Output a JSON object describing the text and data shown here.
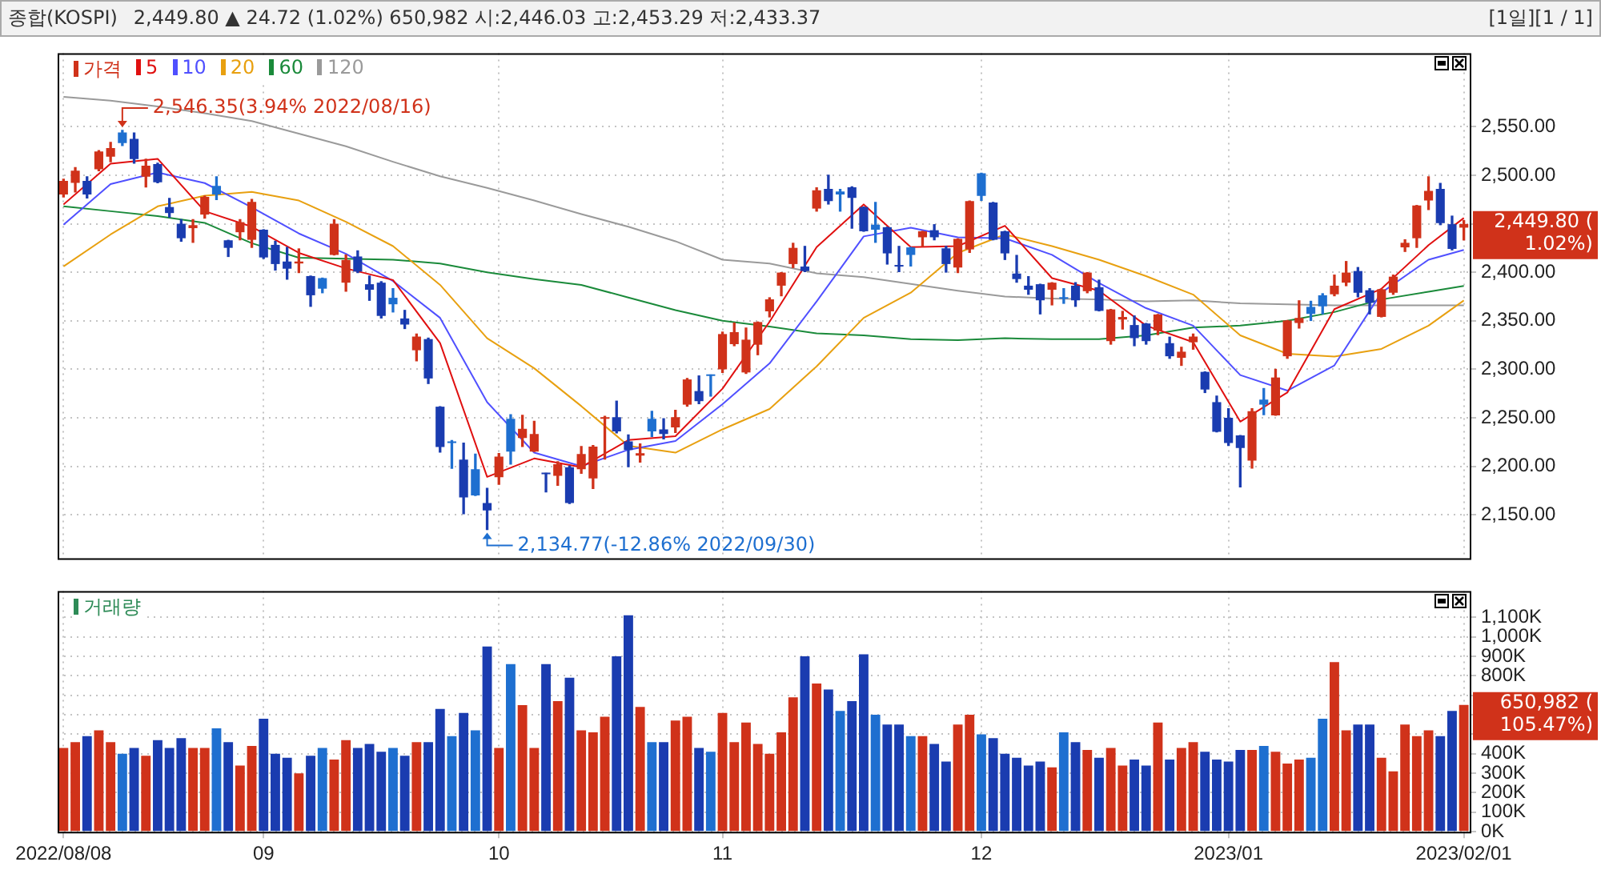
{
  "chart_data": [
    {
      "type": "candlestick",
      "title": "종합(KOSPI)",
      "subtitle": "2,449.80 ▲ 24.72 (1.02%)   650,982   시:2,446.03 고:2,453.29 저:2,433.37",
      "categories": [
        "2022/08/08",
        null,
        null,
        null,
        null,
        null,
        null,
        null,
        null,
        null,
        null,
        null,
        null,
        null,
        null,
        null,
        null,
        "09",
        null,
        null,
        null,
        null,
        null,
        null,
        null,
        null,
        null,
        null,
        null,
        null,
        null,
        null,
        null,
        null,
        null,
        null,
        null,
        "10",
        null,
        null,
        null,
        null,
        null,
        null,
        null,
        null,
        null,
        null,
        null,
        null,
        null,
        null,
        null,
        null,
        null,
        null,
        "11",
        null,
        null,
        null,
        null,
        null,
        null,
        null,
        null,
        null,
        null,
        null,
        null,
        null,
        null,
        null,
        null,
        null,
        null,
        null,
        null,
        null,
        "12",
        null,
        null,
        null,
        null,
        null,
        null,
        null,
        null,
        null,
        null,
        null,
        null,
        null,
        null,
        null,
        null,
        null,
        null,
        null,
        null,
        "2023/01",
        null,
        null,
        null,
        null,
        null,
        null,
        null,
        null,
        null,
        null,
        null,
        null,
        null,
        null,
        null,
        null,
        null,
        null,
        null,
        "2023/02/01"
      ],
      "ylim": [
        2105,
        2626
      ],
      "yticks": [
        {
          "value": 2150,
          "label": "2,150.00"
        },
        {
          "value": 2200,
          "label": "2,200.00"
        },
        {
          "value": 2250,
          "label": "2,250.00"
        },
        {
          "value": 2300,
          "label": "2,300.00"
        },
        {
          "value": 2350,
          "label": "2,350.00"
        },
        {
          "value": 2400,
          "label": "2,400.00"
        },
        {
          "value": 2450,
          "label": null
        },
        {
          "value": 2500,
          "label": "2,500.00"
        },
        {
          "value": 2550,
          "label": "2,550.00"
        }
      ],
      "tick_labels": "y",
      "grid": true,
      "legend": "top left",
      "marker": "none",
      "annotations": [
        {
          "text": "2,546.35(3.94% 2022/08/16)",
          "y": 2546.35
        },
        "2,134.77(-12.86% 2022/09/30)",
        {
          "text": "2,449.80 ( 1.02%)",
          "x": "2023/02/01",
          "y": 2449.8
        },
        "[1일][1 / 1]"
      ],
      "series": [
        {
          "type": "candlestick",
          "name": "가격",
          "color": "#d0321a",
          "colors": [
            "#d0321a",
            "#d0321a",
            "#1a3cb0",
            "#d0321a",
            "#d0321a",
            "#1e6fd0",
            "#1a3cb0",
            "#d0321a",
            "#1a3cb0",
            "#1a3cb0",
            "#1a3cb0",
            "#d0321a",
            "#d0321a",
            "#1e6fd0",
            "#1a3cb0",
            "#d0321a",
            "#d0321a",
            "#1a3cb0",
            "#1a3cb0",
            "#1a3cb0",
            "#d0321a",
            "#1a3cb0",
            "#1e6fd0",
            "#d0321a",
            "#d0321a",
            "#1a3cb0",
            "#1a3cb0",
            "#1a3cb0",
            "#1e6fd0",
            "#1a3cb0",
            "#d0321a",
            "#1a3cb0",
            "#1a3cb0",
            "#1e6fd0",
            "#1a3cb0",
            "#1e6fd0",
            "#1a3cb0",
            "#d0321a",
            "#1e6fd0",
            "#d0321a",
            "#d0321a",
            "#1a3cb0",
            "#d0321a",
            "#1a3cb0",
            "#d0321a",
            "#d0321a",
            "#d0321a",
            "#1a3cb0",
            "#1a3cb0",
            "#d0321a",
            "#1e6fd0",
            "#1a3cb0",
            "#d0321a",
            "#d0321a",
            "#1a3cb0",
            "#1e6fd0",
            "#d0321a",
            "#d0321a",
            "#d0321a",
            "#d0321a",
            "#d0321a",
            "#d0321a",
            "#d0321a",
            "#1a3cb0",
            "#d0321a",
            "#1a3cb0",
            "#1e6fd0",
            "#1a3cb0",
            "#1a3cb0",
            "#1e6fd0",
            "#1a3cb0",
            "#1a3cb0",
            "#1e6fd0",
            "#d0321a",
            "#1a3cb0",
            "#1a3cb0",
            "#d0321a",
            "#d0321a",
            "#1e6fd0",
            "#1a3cb0",
            "#1a3cb0",
            "#1a3cb0",
            "#1a3cb0",
            "#1a3cb0",
            "#d0321a",
            "#1e6fd0",
            "#1a3cb0",
            "#d0321a",
            "#1a3cb0",
            "#d0321a",
            "#d0321a",
            "#1a3cb0",
            "#1a3cb0",
            "#d0321a",
            "#1a3cb0",
            "#d0321a",
            "#d0321a",
            "#1a3cb0",
            "#1a3cb0",
            "#1a3cb0",
            "#1a3cb0",
            "#d0321a",
            "#1e6fd0",
            "#d0321a",
            "#d0321a",
            "#d0321a",
            "#1e6fd0",
            "#1e6fd0",
            "#d0321a",
            "#d0321a",
            "#1a3cb0",
            "#1a3cb0",
            "#d0321a",
            "#d0321a",
            "#d0321a",
            "#d0321a",
            "#d0321a",
            "#1a3cb0",
            "#1a3cb0",
            "#d0321a"
          ],
          "ohlc": [
            [
              2480.3,
              2495.9,
              2477.7,
              2494.3
            ],
            [
              2492.3,
              2507.9,
              2482.9,
              2504.7
            ],
            [
              2494.3,
              2498.5,
              2476.7,
              2480.3
            ],
            [
              2506.3,
              2525.5,
              2504.7,
              2524.5
            ],
            [
              2519.3,
              2533.9,
              2514.1,
              2528.1
            ],
            [
              2544.3,
              2546.35,
              2530.7,
              2533.3
            ],
            [
              2537.5,
              2543.7,
              2512.5,
              2516.7
            ],
            [
              2498.5,
              2516.7,
              2488.1,
              2509.9
            ],
            [
              2511.5,
              2512.5,
              2492.3,
              2492.8
            ],
            [
              2467.3,
              2476.1,
              2456.9,
              2461.1
            ],
            [
              2450.1,
              2454.3,
              2432.0,
              2435.1
            ],
            [
              2445.5,
              2454.3,
              2430.9,
              2448.6
            ],
            [
              2459.5,
              2478.7,
              2455.9,
              2477.7
            ],
            [
              2489.1,
              2498.5,
              2475.1,
              2480.3
            ],
            [
              2433.0,
              2433.0,
              2416.3,
              2425.2
            ],
            [
              2441.3,
              2454.3,
              2433.5,
              2451.7
            ],
            [
              2433.5,
              2475.1,
              2425.7,
              2472.5
            ],
            [
              2443.9,
              2443.9,
              2414.3,
              2415.3
            ],
            [
              2428.3,
              2432.0,
              2402.3,
              2408.5
            ],
            [
              2411.1,
              2425.7,
              2392.9,
              2403.7
            ],
            [
              2409.1,
              2424.1,
              2399.7,
              2411.1
            ],
            [
              2396.1,
              2396.1,
              2364.9,
              2376.3
            ],
            [
              2394.0,
              2394.0,
              2378.9,
              2383.1
            ],
            [
              2417.9,
              2454.3,
              2417.9,
              2450.1
            ],
            [
              2389.3,
              2417.9,
              2380.5,
              2412.7
            ],
            [
              2416.3,
              2422.1,
              2399.7,
              2400.7
            ],
            [
              2387.7,
              2396.1,
              2371.1,
              2382.0
            ],
            [
              2389.3,
              2390.3,
              2352.9,
              2355.0
            ],
            [
              2373.7,
              2383.1,
              2359.1,
              2367.0
            ],
            [
              2352.4,
              2360.7,
              2342.0,
              2346.1
            ],
            [
              2319.6,
              2336.3,
              2308.7,
              2333.7
            ],
            [
              2331.1,
              2332.1,
              2285.3,
              2290.5
            ],
            [
              2261.4,
              2261.4,
              2214.6,
              2219.8
            ],
            [
              2225.5,
              2226.5,
              2197.9,
              2223.9
            ],
            [
              2206.8,
              2223.9,
              2151.1,
              2167.8
            ],
            [
              2196.9,
              2212.5,
              2169.9,
              2169.9
            ],
            [
              2162.1,
              2177.1,
              2134.77,
              2154.3
            ],
            [
              2188.6,
              2213.0,
              2181.3,
              2209.9
            ],
            [
              2248.9,
              2253.1,
              2202.1,
              2215.1
            ],
            [
              2229.1,
              2252.5,
              2220.3,
              2238.5
            ],
            [
              2215.1,
              2246.3,
              2215.1,
              2233.3
            ],
            [
              2192.7,
              2192.7,
              2173.5,
              2191.7
            ],
            [
              2190.1,
              2204.7,
              2180.3,
              2202.1
            ],
            [
              2199.0,
              2200.0,
              2161.5,
              2162.1
            ],
            [
              2196.9,
              2220.3,
              2192.7,
              2212.5
            ],
            [
              2187.5,
              2221.3,
              2177.1,
              2220.3
            ],
            [
              2248.9,
              2251.5,
              2207.3,
              2250.5
            ],
            [
              2250.5,
              2267.1,
              2234.3,
              2235.9
            ],
            [
              2225.5,
              2232.3,
              2199.5,
              2216.7
            ],
            [
              2210.9,
              2222.9,
              2204.2,
              2213.5
            ],
            [
              2248.9,
              2256.7,
              2230.7,
              2235.9
            ],
            [
              2238.0,
              2248.9,
              2228.1,
              2233.3
            ],
            [
              2240.1,
              2257.7,
              2234.9,
              2250.5
            ],
            [
              2263.5,
              2290.5,
              2261.9,
              2289.5
            ],
            [
              2277.5,
              2293.1,
              2264.5,
              2267.1
            ],
            [
              2294.1,
              2294.1,
              2272.3,
              2293.1
            ],
            [
              2299.9,
              2338.3,
              2296.7,
              2336.3
            ],
            [
              2325.9,
              2347.7,
              2324.3,
              2338.3
            ],
            [
              2296.7,
              2342.5,
              2295.7,
              2330.5
            ],
            [
              2325.3,
              2348.7,
              2315.0,
              2348.7
            ],
            [
              2359.7,
              2373.7,
              2354.0,
              2372.1
            ],
            [
              2386.2,
              2399.7,
              2375.8,
              2399.7
            ],
            [
              2408.5,
              2429.9,
              2404.9,
              2425.2
            ],
            [
              2405.9,
              2426.7,
              2400.7,
              2401.3
            ],
            [
              2465.7,
              2487.1,
              2463.1,
              2484.5
            ],
            [
              2486.0,
              2500.1,
              2470.4,
              2473.5
            ],
            [
              2483.4,
              2485.5,
              2463.1,
              2480.3
            ],
            [
              2487.6,
              2488.1,
              2445.5,
              2476.7
            ],
            [
              2467.3,
              2467.3,
              2442.3,
              2442.3
            ],
            [
              2449.1,
              2472.0,
              2430.9,
              2443.9
            ],
            [
              2446.5,
              2446.5,
              2408.5,
              2419.5
            ],
            [
              2407.5,
              2426.7,
              2400.7,
              2405.9
            ],
            [
              2425.7,
              2425.7,
              2406.5,
              2417.9
            ],
            [
              2436.1,
              2442.3,
              2426.7,
              2442.3
            ],
            [
              2443.4,
              2449.1,
              2433.5,
              2436.1
            ],
            [
              2424.7,
              2426.7,
              2400.2,
              2408.5
            ],
            [
              2404.9,
              2434.5,
              2399.7,
              2434.5
            ],
            [
              2423.6,
              2473.5,
              2420.5,
              2473.5
            ],
            [
              2502.1,
              2502.1,
              2474.1,
              2478.7
            ],
            [
              2472.0,
              2472.0,
              2433.5,
              2433.5
            ],
            [
              2442.3,
              2442.3,
              2413.2,
              2419.5
            ],
            [
              2398.7,
              2417.4,
              2389.8,
              2393.0
            ],
            [
              2386.2,
              2395.5,
              2377.3,
              2382.0
            ],
            [
              2387.7,
              2387.7,
              2357.1,
              2371.1
            ],
            [
              2382.0,
              2389.3,
              2366.4,
              2389.3
            ],
            [
              2373.7,
              2383.1,
              2368.0,
              2372.7
            ],
            [
              2386.2,
              2389.3,
              2364.9,
              2371.1
            ],
            [
              2380.5,
              2399.7,
              2378.9,
              2399.7
            ],
            [
              2384.6,
              2391.9,
              2360.2,
              2360.2
            ],
            [
              2329.0,
              2361.7,
              2325.9,
              2361.7
            ],
            [
              2351.3,
              2359.7,
              2341.5,
              2353.9
            ],
            [
              2345.6,
              2355.0,
              2324.3,
              2332.1
            ],
            [
              2347.2,
              2347.2,
              2325.9,
              2329.0
            ],
            [
              2339.9,
              2356.5,
              2335.7,
              2356.5
            ],
            [
              2326.9,
              2333.1,
              2311.3,
              2313.4
            ],
            [
              2311.8,
              2322.7,
              2304.0,
              2318.1
            ],
            [
              2327.9,
              2336.3,
              2320.7,
              2333.7
            ],
            [
              2297.3,
              2297.3,
              2276.0,
              2279.1
            ],
            [
              2266.1,
              2272.3,
              2235.4,
              2235.4
            ],
            [
              2250.0,
              2259.3,
              2221.3,
              2224.0
            ],
            [
              2231.7,
              2231.7,
              2178.7,
              2218.7
            ],
            [
              2205.7,
              2259.3,
              2198.0,
              2256.7
            ],
            [
              2268.7,
              2280.1,
              2253.1,
              2263.5
            ],
            [
              2252.5,
              2299.9,
              2252.5,
              2291.5
            ],
            [
              2313.4,
              2350.3,
              2311.3,
              2350.3
            ],
            [
              2347.7,
              2370.6,
              2342.5,
              2352.9
            ],
            [
              2364.3,
              2370.1,
              2350.3,
              2357.1
            ],
            [
              2376.3,
              2377.9,
              2357.1,
              2364.9
            ],
            [
              2377.3,
              2397.1,
              2375.8,
              2386.2
            ],
            [
              2389.3,
              2411.1,
              2386.2,
              2399.7
            ],
            [
              2401.3,
              2404.9,
              2374.7,
              2378.9
            ],
            [
              2381.5,
              2383.1,
              2357.1,
              2368.5
            ],
            [
              2354.0,
              2382.5,
              2354.0,
              2382.5
            ],
            [
              2378.9,
              2397.1,
              2377.3,
              2395.5
            ],
            [
              2425.7,
              2433.5,
              2421.5,
              2430.4
            ],
            [
              2435.1,
              2468.9,
              2425.7,
              2468.9
            ],
            [
              2474.1,
              2498.5,
              2464.7,
              2484.0
            ],
            [
              2486.0,
              2491.7,
              2449.1,
              2450.7
            ],
            [
              2449.6,
              2457.9,
              2423.1,
              2424.1
            ],
            [
              2446.03,
              2453.29,
              2433.37,
              2449.8
            ]
          ]
        },
        {
          "type": "line",
          "name": "5",
          "color": "#e01010",
          "values": [
            2470,
            null,
            null,
            null,
            2512,
            null,
            null,
            null,
            2517,
            null,
            null,
            null,
            2463,
            null,
            null,
            null,
            2447,
            null,
            null,
            null,
            2420,
            null,
            null,
            null,
            2404,
            null,
            null,
            null,
            2392,
            null,
            null,
            null,
            2327,
            null,
            null,
            null,
            2189,
            null,
            null,
            null,
            2208,
            null,
            null,
            null,
            2199,
            null,
            null,
            null,
            2227,
            null,
            null,
            null,
            2231,
            null,
            null,
            null,
            2280,
            null,
            null,
            null,
            2349,
            null,
            null,
            null,
            2426,
            null,
            null,
            null,
            2470,
            null,
            null,
            null,
            2426,
            null,
            null,
            null,
            2427,
            null,
            null,
            null,
            2448,
            null,
            null,
            null,
            2394,
            null,
            null,
            null,
            2381,
            null,
            null,
            null,
            2345,
            null,
            null,
            null,
            2328,
            null,
            null,
            null,
            2246,
            null,
            null,
            null,
            2276,
            null,
            null,
            null,
            2362,
            null,
            null,
            null,
            2383,
            null,
            null,
            null,
            2428,
            null,
            null,
            2456
          ]
        },
        {
          "type": "line",
          "name": "10",
          "color": "#5050ff",
          "values": [
            2449,
            null,
            null,
            null,
            2491,
            null,
            null,
            null,
            2503,
            null,
            null,
            null,
            2492,
            null,
            null,
            null,
            2467,
            null,
            null,
            null,
            2440,
            null,
            null,
            null,
            2419,
            null,
            null,
            null,
            2391,
            null,
            null,
            null,
            2353,
            null,
            null,
            null,
            2266,
            null,
            null,
            null,
            2214,
            null,
            null,
            null,
            2200,
            null,
            null,
            null,
            2217,
            null,
            null,
            null,
            2226,
            null,
            null,
            null,
            2264,
            null,
            null,
            null,
            2306,
            null,
            null,
            null,
            2370,
            null,
            null,
            null,
            2437,
            null,
            null,
            null,
            2446,
            null,
            null,
            null,
            2436,
            null,
            null,
            null,
            2435,
            null,
            null,
            null,
            2418,
            null,
            null,
            null,
            2389,
            null,
            null,
            null,
            2363,
            null,
            null,
            null,
            2345,
            null,
            null,
            null,
            2294,
            null,
            null,
            null,
            2278,
            null,
            null,
            null,
            2304,
            null,
            null,
            null,
            2379,
            null,
            null,
            null,
            2413,
            null,
            null,
            2423
          ]
        },
        {
          "type": "line",
          "name": "20",
          "color": "#e8a010",
          "values": [
            2406,
            null,
            null,
            null,
            2439,
            null,
            null,
            null,
            2468,
            null,
            null,
            null,
            2479,
            null,
            null,
            null,
            2483,
            null,
            null,
            null,
            2474,
            null,
            null,
            null,
            2452,
            null,
            null,
            null,
            2427,
            null,
            null,
            null,
            2387,
            null,
            null,
            null,
            2332,
            null,
            null,
            null,
            2301,
            null,
            null,
            null,
            2262,
            null,
            null,
            null,
            2221,
            null,
            null,
            null,
            2214,
            null,
            null,
            null,
            2238,
            null,
            null,
            null,
            2259,
            null,
            null,
            null,
            2303,
            null,
            null,
            null,
            2353,
            null,
            null,
            null,
            2379,
            null,
            null,
            null,
            2420,
            null,
            null,
            null,
            2439,
            null,
            null,
            null,
            2427,
            null,
            null,
            null,
            2413,
            null,
            null,
            null,
            2396,
            null,
            null,
            null,
            2377,
            null,
            null,
            null,
            2335,
            null,
            null,
            null,
            2316,
            null,
            null,
            null,
            2313,
            null,
            null,
            null,
            2321,
            null,
            null,
            null,
            2345,
            null,
            null,
            2371
          ]
        },
        {
          "type": "line",
          "name": "60",
          "color": "#1a8a3a",
          "values": [
            2468,
            null,
            null,
            null,
            2463,
            null,
            null,
            null,
            2458,
            null,
            null,
            null,
            2451,
            null,
            null,
            null,
            2430,
            null,
            null,
            null,
            2415,
            null,
            null,
            null,
            2414,
            null,
            null,
            null,
            2413,
            null,
            null,
            null,
            2409,
            null,
            null,
            null,
            2400,
            null,
            null,
            null,
            2393,
            null,
            null,
            null,
            2387,
            null,
            null,
            null,
            2374,
            null,
            null,
            null,
            2361,
            null,
            null,
            null,
            2350,
            null,
            null,
            null,
            2344,
            null,
            null,
            null,
            2337,
            null,
            null,
            null,
            2335,
            null,
            null,
            null,
            2331,
            null,
            null,
            null,
            2330,
            null,
            null,
            null,
            2332,
            null,
            null,
            null,
            2331,
            null,
            null,
            null,
            2331,
            null,
            null,
            null,
            2335,
            null,
            null,
            null,
            2343,
            null,
            null,
            null,
            2345,
            null,
            null,
            null,
            2350,
            null,
            null,
            null,
            2359,
            null,
            null,
            null,
            2372,
            null,
            null,
            null,
            2380,
            null,
            null,
            2386
          ]
        },
        {
          "type": "line",
          "name": "120",
          "color": "#9a9a9a",
          "values": [
            2581,
            null,
            null,
            null,
            2577,
            null,
            null,
            null,
            2571,
            null,
            null,
            null,
            2564,
            null,
            null,
            null,
            2556,
            null,
            null,
            null,
            2543,
            null,
            null,
            null,
            2530,
            null,
            null,
            null,
            2514,
            null,
            null,
            null,
            2499,
            null,
            null,
            null,
            2487,
            null,
            null,
            null,
            2474,
            null,
            null,
            null,
            2460,
            null,
            null,
            null,
            2447,
            null,
            null,
            null,
            2432,
            null,
            null,
            null,
            2413,
            null,
            null,
            null,
            2409,
            null,
            null,
            null,
            2399,
            null,
            null,
            null,
            2395,
            null,
            null,
            null,
            2388,
            null,
            null,
            null,
            2381,
            null,
            null,
            null,
            2375,
            null,
            null,
            null,
            2373,
            null,
            null,
            null,
            2372,
            null,
            null,
            null,
            2370,
            null,
            null,
            null,
            2371,
            null,
            null,
            null,
            2368,
            null,
            null,
            null,
            2367,
            null,
            null,
            null,
            2366,
            null,
            null,
            null,
            2366,
            null,
            null,
            null,
            2366,
            null,
            null,
            2366
          ]
        }
      ]
    },
    {
      "type": "bar",
      "categories": [
        "2022/08/08",
        null,
        null,
        null,
        null,
        null,
        null,
        null,
        null,
        null,
        null,
        null,
        null,
        null,
        null,
        null,
        null,
        "09",
        null,
        null,
        null,
        null,
        null,
        null,
        null,
        null,
        null,
        null,
        null,
        null,
        null,
        null,
        null,
        null,
        null,
        null,
        null,
        "10",
        null,
        null,
        null,
        null,
        null,
        null,
        null,
        null,
        null,
        null,
        null,
        null,
        null,
        null,
        null,
        null,
        null,
        null,
        "11",
        null,
        null,
        null,
        null,
        null,
        null,
        null,
        null,
        null,
        null,
        null,
        null,
        null,
        null,
        null,
        null,
        null,
        null,
        null,
        null,
        null,
        "12",
        null,
        null,
        null,
        null,
        null,
        null,
        null,
        null,
        null,
        null,
        null,
        null,
        null,
        null,
        null,
        null,
        null,
        null,
        null,
        null,
        "2023/01",
        null,
        null,
        null,
        null,
        null,
        null,
        null,
        null,
        null,
        null,
        null,
        null,
        null,
        null,
        null,
        null,
        null,
        null,
        null,
        "2023/02/01"
      ],
      "ylim": [
        0,
        1235000
      ],
      "yticks": [
        {
          "value": 0,
          "label": "0K"
        },
        {
          "value": 100000,
          "label": "100K"
        },
        {
          "value": 200000,
          "label": "200K"
        },
        {
          "value": 300000,
          "label": "300K"
        },
        {
          "value": 400000,
          "label": "400K"
        },
        {
          "value": 500000,
          "label": null
        },
        {
          "value": 600000,
          "label": null
        },
        {
          "value": 700000,
          "label": null
        },
        {
          "value": 800000,
          "label": "800K"
        },
        {
          "value": 900000,
          "label": "900K"
        },
        {
          "value": 1000000,
          "label": "1,000K"
        },
        {
          "value": 1100000,
          "label": "1,100K"
        }
      ],
      "grid": true,
      "legend": "top left",
      "annotations": [
        {
          "text": "650,982 ( 105.47%)",
          "x": "2023/02/01",
          "y": 650982
        }
      ],
      "series": [
        {
          "name": "거래량",
          "color": "#2e8b57",
          "colors": [
            "#d0321a",
            "#d0321a",
            "#1a3cb0",
            "#d0321a",
            "#d0321a",
            "#1e6fd0",
            "#1a3cb0",
            "#d0321a",
            "#1a3cb0",
            "#1a3cb0",
            "#1a3cb0",
            "#d0321a",
            "#d0321a",
            "#1e6fd0",
            "#1a3cb0",
            "#d0321a",
            "#d0321a",
            "#1a3cb0",
            "#1a3cb0",
            "#1a3cb0",
            "#d0321a",
            "#1a3cb0",
            "#1e6fd0",
            "#d0321a",
            "#d0321a",
            "#1a3cb0",
            "#1a3cb0",
            "#1a3cb0",
            "#1e6fd0",
            "#1a3cb0",
            "#d0321a",
            "#1a3cb0",
            "#1a3cb0",
            "#1e6fd0",
            "#1a3cb0",
            "#1e6fd0",
            "#1a3cb0",
            "#d0321a",
            "#1e6fd0",
            "#d0321a",
            "#d0321a",
            "#1a3cb0",
            "#d0321a",
            "#1a3cb0",
            "#d0321a",
            "#d0321a",
            "#d0321a",
            "#1a3cb0",
            "#1a3cb0",
            "#d0321a",
            "#1e6fd0",
            "#1a3cb0",
            "#d0321a",
            "#d0321a",
            "#1a3cb0",
            "#1e6fd0",
            "#d0321a",
            "#d0321a",
            "#d0321a",
            "#d0321a",
            "#d0321a",
            "#d0321a",
            "#d0321a",
            "#1a3cb0",
            "#d0321a",
            "#1a3cb0",
            "#1e6fd0",
            "#1a3cb0",
            "#1a3cb0",
            "#1e6fd0",
            "#1a3cb0",
            "#1a3cb0",
            "#1e6fd0",
            "#d0321a",
            "#1a3cb0",
            "#1a3cb0",
            "#d0321a",
            "#d0321a",
            "#1e6fd0",
            "#1a3cb0",
            "#1a3cb0",
            "#1a3cb0",
            "#1a3cb0",
            "#1a3cb0",
            "#d0321a",
            "#1e6fd0",
            "#1a3cb0",
            "#d0321a",
            "#1a3cb0",
            "#d0321a",
            "#d0321a",
            "#1a3cb0",
            "#1a3cb0",
            "#d0321a",
            "#1a3cb0",
            "#d0321a",
            "#d0321a",
            "#1a3cb0",
            "#1a3cb0",
            "#1a3cb0",
            "#1a3cb0",
            "#d0321a",
            "#1e6fd0",
            "#d0321a",
            "#d0321a",
            "#d0321a",
            "#1e6fd0",
            "#1e6fd0",
            "#d0321a",
            "#d0321a",
            "#1a3cb0",
            "#1a3cb0",
            "#d0321a",
            "#d0321a",
            "#d0321a",
            "#d0321a",
            "#d0321a",
            "#1a3cb0",
            "#1a3cb0",
            "#d0321a"
          ],
          "values": [
            430000,
            460000,
            490000,
            520000,
            460000,
            400000,
            430000,
            390000,
            470000,
            430000,
            480000,
            430000,
            430000,
            530000,
            460000,
            340000,
            440000,
            580000,
            400000,
            380000,
            300000,
            390000,
            430000,
            370000,
            470000,
            430000,
            450000,
            410000,
            430000,
            390000,
            460000,
            460000,
            630000,
            490000,
            610000,
            520000,
            950000,
            430000,
            860000,
            650000,
            430000,
            860000,
            670000,
            790000,
            520000,
            510000,
            590000,
            900000,
            1110000,
            640000,
            460000,
            460000,
            570000,
            590000,
            430000,
            410000,
            610000,
            460000,
            560000,
            450000,
            400000,
            510000,
            690000,
            900000,
            760000,
            730000,
            620000,
            670000,
            910000,
            600000,
            550000,
            550000,
            490000,
            490000,
            450000,
            360000,
            550000,
            600000,
            500000,
            480000,
            400000,
            380000,
            340000,
            360000,
            330000,
            510000,
            460000,
            420000,
            380000,
            430000,
            340000,
            370000,
            340000,
            560000,
            370000,
            430000,
            460000,
            410000,
            370000,
            360000,
            420000,
            420000,
            440000,
            410000,
            350000,
            370000,
            380000,
            580000,
            870000,
            520000,
            550000,
            550000,
            380000,
            310000,
            550000,
            490000,
            520000,
            490000,
            620000,
            650982
          ]
        }
      ]
    }
  ]
}
